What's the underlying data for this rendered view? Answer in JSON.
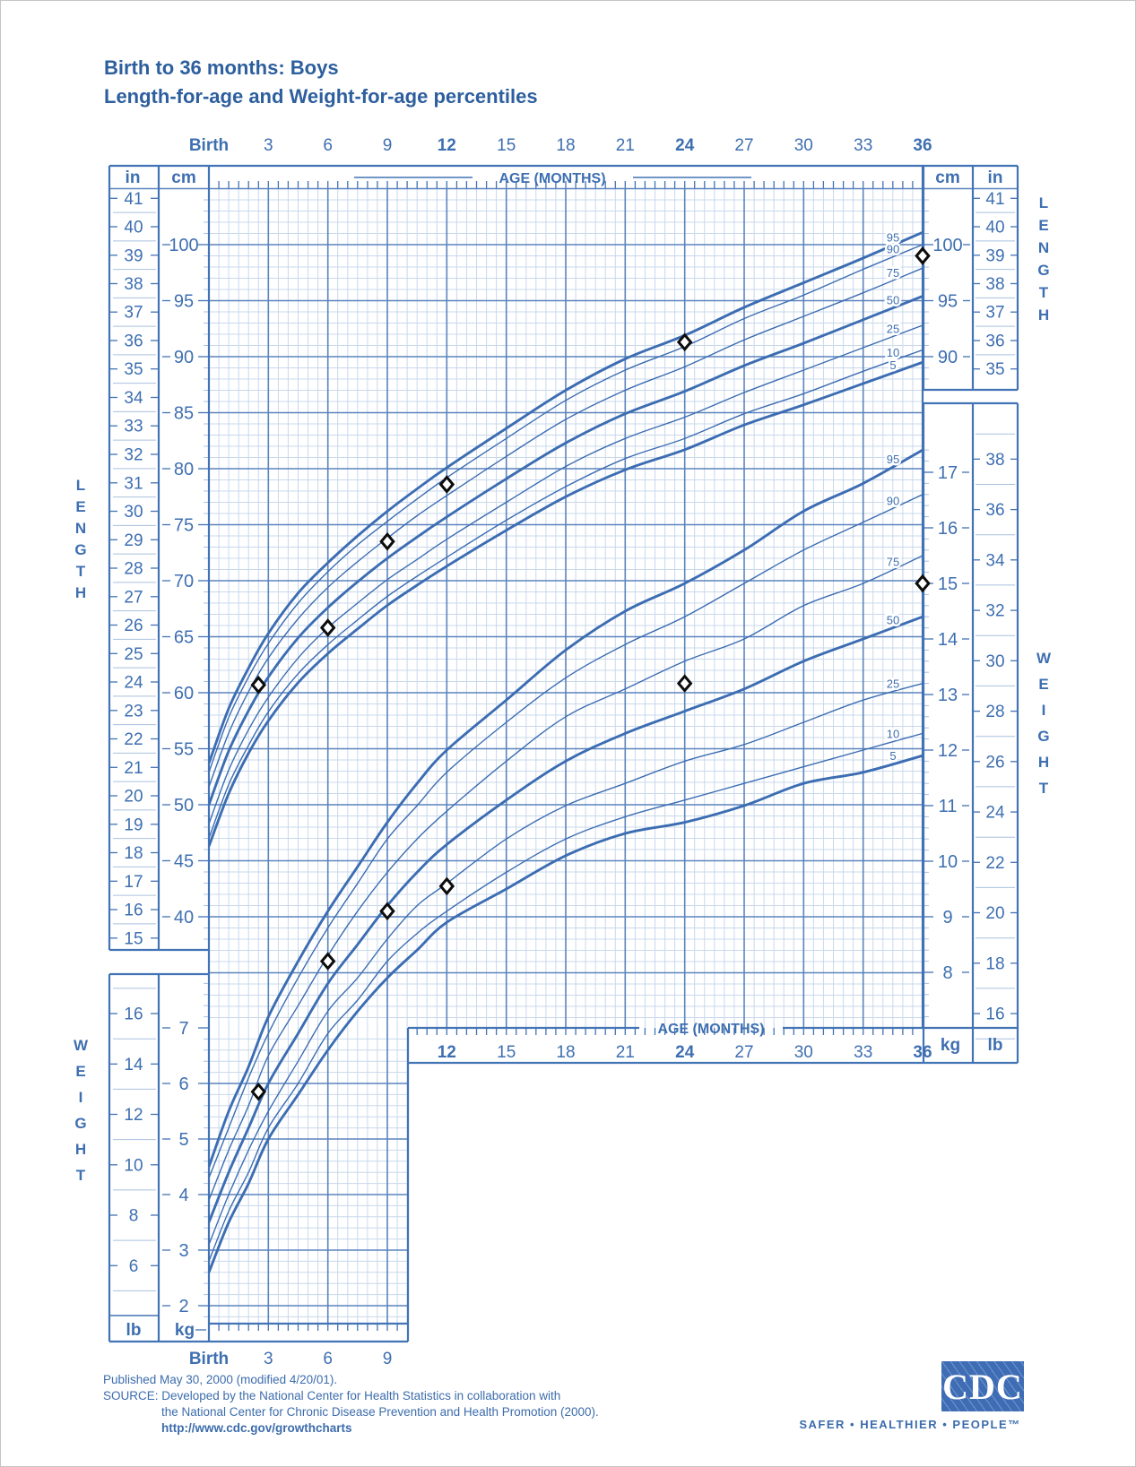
{
  "title": {
    "line1": "Birth to 36 months: Boys",
    "line2": "Length-for-age and Weight-for-age percentiles"
  },
  "colors": {
    "accent_blue": "#3e6fb1",
    "grid_fine": "#c9d8ec",
    "grid_major": "#5b84bd",
    "curve": "#3c6db2",
    "marker_stroke": "#0d0d0d",
    "logo_blue": "#3e6db5"
  },
  "axes": {
    "age_title": "AGE (MONTHS)",
    "top_months": [
      {
        "label": "Birth",
        "m": 0,
        "bold": true
      },
      {
        "label": "3",
        "m": 3
      },
      {
        "label": "6",
        "m": 6
      },
      {
        "label": "9",
        "m": 9
      },
      {
        "label": "12",
        "m": 12,
        "bold": true
      },
      {
        "label": "15",
        "m": 15
      },
      {
        "label": "18",
        "m": 18
      },
      {
        "label": "21",
        "m": 21
      },
      {
        "label": "24",
        "m": 24,
        "bold": true
      },
      {
        "label": "27",
        "m": 27
      },
      {
        "label": "30",
        "m": 30
      },
      {
        "label": "33",
        "m": 33
      },
      {
        "label": "36",
        "m": 36,
        "bold": true
      }
    ],
    "mid_months": [
      {
        "label": "12",
        "m": 12,
        "bold": true
      },
      {
        "label": "15",
        "m": 15
      },
      {
        "label": "18",
        "m": 18
      },
      {
        "label": "21",
        "m": 21
      },
      {
        "label": "24",
        "m": 24,
        "bold": true
      },
      {
        "label": "27",
        "m": 27
      },
      {
        "label": "30",
        "m": 30
      },
      {
        "label": "33",
        "m": 33
      },
      {
        "label": "36",
        "m": 36,
        "bold": true
      }
    ],
    "bottom_months": [
      {
        "label": "Birth",
        "m": 0,
        "bold": true
      },
      {
        "label": "3",
        "m": 3
      },
      {
        "label": "6",
        "m": 6
      },
      {
        "label": "9",
        "m": 9
      }
    ],
    "left_in": [
      41,
      40,
      39,
      38,
      37,
      36,
      35,
      34,
      33,
      32,
      31,
      30,
      29,
      28,
      27,
      26,
      25,
      24,
      23,
      22,
      21,
      20,
      19,
      18,
      17,
      16,
      15
    ],
    "right_in": [
      41,
      40,
      39,
      38,
      37,
      36,
      35
    ],
    "left_cm": [
      100,
      95,
      90,
      85,
      80,
      75,
      70,
      65,
      60,
      55,
      50,
      45,
      40
    ],
    "right_cm": [
      100,
      95,
      90
    ],
    "right_kg": [
      17,
      16,
      15,
      14,
      13,
      12,
      11,
      10,
      9,
      8
    ],
    "right_lb": [
      38,
      36,
      34,
      32,
      30,
      28,
      26,
      24,
      22,
      20,
      18,
      16
    ],
    "left_lb": [
      16,
      14,
      12,
      10,
      8,
      6
    ],
    "bottom_kg": [
      7,
      6,
      5,
      4,
      3,
      2
    ],
    "unit_in": "in",
    "unit_cm": "cm",
    "unit_kg": "kg",
    "unit_lb": "lb",
    "length_caption": "LENGTH",
    "weight_caption": "WEIGHT"
  },
  "chart_data": {
    "type": "line",
    "title": "Birth to 36 months: Boys — Length-for-age and Weight-for-age percentiles",
    "xlabel": "AGE (MONTHS)",
    "axis_ranges": {
      "age_months": [
        0,
        36
      ],
      "length_cm": [
        45,
        103
      ],
      "length_in": [
        15,
        41
      ],
      "weight_kg": [
        2,
        17.5
      ],
      "weight_lb": [
        4,
        38
      ]
    },
    "percentile_order": [
      "5",
      "10",
      "25",
      "50",
      "75",
      "90",
      "95"
    ],
    "emphasized_percentiles": [
      "5",
      "50",
      "95"
    ],
    "percentile_labels": [
      "95",
      "90",
      "75",
      "50",
      "25",
      "10",
      "5"
    ],
    "months": [
      0,
      1,
      2,
      3,
      4.5,
      6,
      7.5,
      9,
      10.5,
      12,
      15,
      18,
      21,
      24,
      27,
      30,
      33,
      36
    ],
    "length_cm": {
      "5": [
        46.3,
        51.0,
        54.6,
        57.5,
        60.9,
        63.5,
        65.7,
        67.8,
        69.6,
        71.3,
        74.5,
        77.5,
        79.9,
        81.7,
        83.9,
        85.7,
        87.6,
        89.5
      ],
      "10": [
        47.0,
        51.8,
        55.3,
        58.3,
        61.7,
        64.3,
        66.5,
        68.6,
        70.4,
        72.1,
        75.4,
        78.4,
        80.9,
        82.7,
        84.9,
        86.7,
        88.7,
        90.6
      ],
      "25": [
        48.3,
        53.1,
        56.7,
        59.6,
        63.1,
        65.8,
        68.0,
        70.1,
        71.9,
        73.7,
        77.0,
        80.2,
        82.7,
        84.6,
        86.8,
        88.8,
        90.8,
        92.8
      ],
      "50": [
        50.0,
        54.8,
        58.4,
        61.4,
        64.9,
        67.6,
        69.9,
        72.0,
        73.9,
        75.7,
        79.1,
        82.3,
        84.9,
        86.9,
        89.2,
        91.2,
        93.3,
        95.4
      ],
      "75": [
        51.6,
        56.4,
        60.1,
        63.1,
        66.6,
        69.4,
        71.7,
        73.8,
        75.8,
        77.6,
        81.1,
        84.4,
        87.0,
        89.1,
        91.5,
        93.6,
        95.7,
        97.9
      ],
      "90": [
        52.9,
        57.8,
        61.4,
        64.4,
        68.0,
        70.8,
        73.2,
        75.3,
        77.3,
        79.2,
        82.7,
        86.1,
        88.8,
        90.9,
        93.4,
        95.5,
        97.8,
        100.0
      ],
      "95": [
        53.7,
        58.6,
        62.2,
        65.3,
        68.9,
        71.6,
        74.0,
        76.2,
        78.2,
        80.1,
        83.6,
        87.0,
        89.8,
        91.9,
        94.4,
        96.6,
        98.8,
        101.1
      ]
    },
    "weight_kg": {
      "5": [
        2.6,
        3.5,
        4.2,
        5.0,
        5.8,
        6.6,
        7.3,
        7.9,
        8.4,
        8.9,
        9.5,
        10.1,
        10.5,
        10.7,
        11.0,
        11.4,
        11.6,
        11.9
      ],
      "10": [
        2.8,
        3.7,
        4.4,
        5.2,
        6.0,
        6.9,
        7.5,
        8.2,
        8.7,
        9.1,
        9.8,
        10.4,
        10.8,
        11.1,
        11.4,
        11.7,
        12.0,
        12.3
      ],
      "25": [
        3.1,
        4.0,
        4.8,
        5.5,
        6.4,
        7.3,
        7.9,
        8.6,
        9.2,
        9.6,
        10.4,
        11.0,
        11.4,
        11.8,
        12.1,
        12.5,
        12.9,
        13.2
      ],
      "50": [
        3.5,
        4.4,
        5.2,
        6.0,
        6.9,
        7.8,
        8.5,
        9.2,
        9.8,
        10.3,
        11.1,
        11.8,
        12.3,
        12.7,
        13.1,
        13.6,
        14.0,
        14.4
      ],
      "75": [
        3.9,
        4.8,
        5.6,
        6.5,
        7.4,
        8.3,
        9.1,
        9.8,
        10.4,
        10.9,
        11.8,
        12.6,
        13.1,
        13.6,
        14.0,
        14.6,
        15.0,
        15.5
      ],
      "90": [
        4.3,
        5.2,
        6.1,
        6.9,
        7.9,
        8.8,
        9.6,
        10.4,
        11.0,
        11.6,
        12.5,
        13.3,
        13.9,
        14.4,
        15.0,
        15.6,
        16.1,
        16.6
      ],
      "95": [
        4.5,
        5.5,
        6.3,
        7.2,
        8.2,
        9.1,
        9.9,
        10.7,
        11.4,
        12.0,
        12.9,
        13.8,
        14.5,
        15.0,
        15.6,
        16.3,
        16.8,
        17.4
      ]
    },
    "patient_series": {
      "length_for_age": [
        [
          2.5,
          60.7
        ],
        [
          6,
          65.8
        ],
        [
          9,
          73.5
        ],
        [
          12,
          78.6
        ],
        [
          24,
          91.3
        ],
        [
          36,
          99.0
        ]
      ],
      "weight_for_age": [
        [
          2.5,
          5.85
        ],
        [
          6,
          8.2
        ],
        [
          9,
          9.1
        ],
        [
          12,
          9.55
        ],
        [
          24,
          13.2
        ],
        [
          36,
          15.0
        ]
      ]
    }
  },
  "footer": {
    "line1": "Published May 30, 2000 (modified 4/20/01).",
    "line2": "SOURCE: Developed by the National Center for Health Statistics in collaboration with",
    "line3": "the National Center for Chronic Disease Prevention and Health Promotion (2000).",
    "url": "http://www.cdc.gov/growthcharts"
  },
  "logo": {
    "text": "CDC",
    "tagline": "SAFER • HEALTHIER • PEOPLE™"
  }
}
